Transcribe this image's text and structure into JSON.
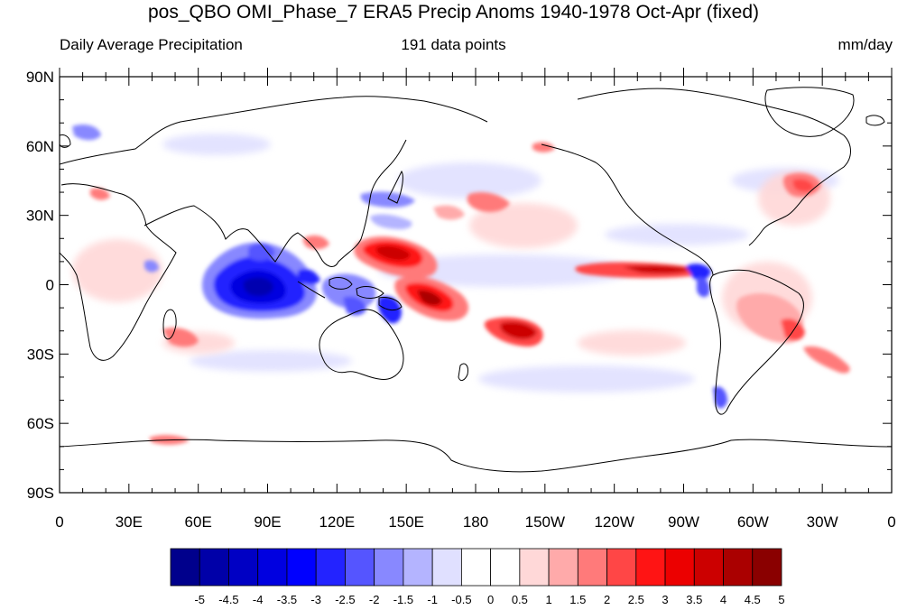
{
  "title": "pos_QBO OMI_Phase_7 ERA5 Precip Anoms 1940-1978 Oct-Apr (fixed)",
  "subtitle_left": "Daily Average Precipitation",
  "subtitle_center": "191 data points",
  "subtitle_right": "mm/day",
  "lat_labels": [
    "90N",
    "60N",
    "30N",
    "0",
    "30S",
    "60S",
    "90S"
  ],
  "lon_labels": [
    "0",
    "30E",
    "60E",
    "90E",
    "120E",
    "150E",
    "180",
    "150W",
    "120W",
    "90W",
    "60W",
    "30W",
    "0"
  ],
  "colorbar": {
    "labels": [
      "-5",
      "-4.5",
      "-4",
      "-3.5",
      "-3",
      "-2.5",
      "-2",
      "-1.5",
      "-1",
      "-0.5",
      "0",
      "0.5",
      "1",
      "1.5",
      "2",
      "2.5",
      "3",
      "3.5",
      "4",
      "4.5",
      "5"
    ],
    "colors": [
      "#00008c",
      "#0000a8",
      "#0000c4",
      "#0000e0",
      "#0000ff",
      "#2323ff",
      "#5555ff",
      "#8888ff",
      "#b4b4ff",
      "#e0e0ff",
      "#ffffff",
      "#ffffff",
      "#ffd8d8",
      "#ffaaaa",
      "#ff7a7a",
      "#ff4646",
      "#ff1414",
      "#ec0000",
      "#cc0000",
      "#aa0000",
      "#8a0000"
    ]
  },
  "projection": "cylindrical-equidistant",
  "lon_range": [
    0,
    360
  ],
  "lat_range": [
    -90,
    90
  ]
}
